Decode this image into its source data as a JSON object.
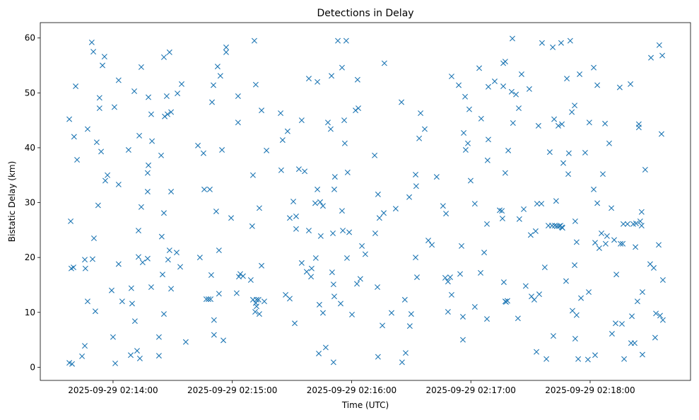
{
  "chart_data": {
    "type": "scatter",
    "title": "Detections in Delay",
    "xlabel": "Time (UTC)",
    "ylabel": "Bistatic Delay (km)",
    "x_origin": "2025-09-29 02:14:00",
    "x_unit": "seconds since x_origin",
    "xlim": [
      -36.6,
      290.5
    ],
    "ylim": [
      -2.4,
      62.8
    ],
    "xticks": [
      {
        "value": 0,
        "label": "2025-09-29 02:14:00"
      },
      {
        "value": 60,
        "label": "2025-09-29 02:15:00"
      },
      {
        "value": 120,
        "label": "2025-09-29 02:16:00"
      },
      {
        "value": 180,
        "label": "2025-09-29 02:17:00"
      },
      {
        "value": 240,
        "label": "2025-09-29 02:18:00"
      }
    ],
    "yticks": [
      {
        "value": 0,
        "label": "0"
      },
      {
        "value": 10,
        "label": "10"
      },
      {
        "value": 20,
        "label": "20"
      },
      {
        "value": 30,
        "label": "30"
      },
      {
        "value": 40,
        "label": "40"
      },
      {
        "value": 50,
        "label": "50"
      },
      {
        "value": 60,
        "label": "60"
      }
    ],
    "grid": false,
    "marker": "x",
    "color": "#1f77b4",
    "points": [
      [
        -22.0,
        45.2
      ],
      [
        -21.3,
        26.6
      ],
      [
        -22.0,
        0.8
      ],
      [
        -20.6,
        0.6
      ],
      [
        -21.0,
        18.0
      ],
      [
        -19.9,
        18.2
      ],
      [
        -19.6,
        42.0
      ],
      [
        -18.8,
        51.2
      ],
      [
        -18.1,
        37.8
      ],
      [
        -15.6,
        2.0
      ],
      [
        -14.2,
        3.9
      ],
      [
        -14.2,
        19.6
      ],
      [
        -13.9,
        18.0
      ],
      [
        -12.8,
        43.4
      ],
      [
        -12.8,
        12.0
      ],
      [
        -10.7,
        59.2
      ],
      [
        -9.9,
        57.5
      ],
      [
        -10.3,
        19.7
      ],
      [
        -9.6,
        23.5
      ],
      [
        -8.9,
        10.2
      ],
      [
        -8.2,
        41.0
      ],
      [
        -7.5,
        29.5
      ],
      [
        -6.8,
        49.1
      ],
      [
        -6.8,
        47.2
      ],
      [
        -6.0,
        39.3
      ],
      [
        -5.3,
        55.0
      ],
      [
        -4.3,
        56.6
      ],
      [
        -3.9,
        34.0
      ],
      [
        -2.8,
        35.0
      ],
      [
        -0.7,
        14.0
      ],
      [
        0.0,
        5.5
      ],
      [
        0.7,
        47.4
      ],
      [
        1.1,
        0.7
      ],
      [
        2.8,
        52.3
      ],
      [
        2.8,
        33.3
      ],
      [
        2.8,
        18.8
      ],
      [
        4.6,
        12.0
      ],
      [
        7.8,
        39.6
      ],
      [
        9.2,
        14.4
      ],
      [
        9.6,
        11.6
      ],
      [
        10.7,
        50.3
      ],
      [
        11.0,
        8.4
      ],
      [
        8.9,
        2.2
      ],
      [
        12.1,
        3.0
      ],
      [
        13.5,
        1.6
      ],
      [
        12.8,
        24.9
      ],
      [
        13.2,
        42.2
      ],
      [
        14.2,
        29.2
      ],
      [
        14.2,
        54.7
      ],
      [
        12.8,
        20.1
      ],
      [
        14.9,
        19.1
      ],
      [
        17.4,
        19.8
      ],
      [
        17.8,
        49.2
      ],
      [
        17.4,
        35.4
      ],
      [
        17.8,
        36.8
      ],
      [
        17.4,
        32.0
      ],
      [
        19.2,
        14.6
      ],
      [
        19.2,
        46.1
      ],
      [
        19.6,
        41.2
      ],
      [
        23.1,
        2.1
      ],
      [
        23.1,
        5.5
      ],
      [
        24.2,
        38.6
      ],
      [
        24.5,
        23.8
      ],
      [
        24.9,
        16.9
      ],
      [
        25.6,
        56.5
      ],
      [
        25.6,
        28.1
      ],
      [
        25.6,
        9.7
      ],
      [
        26.0,
        45.7
      ],
      [
        27.0,
        49.4
      ],
      [
        27.4,
        46.1
      ],
      [
        27.7,
        19.6
      ],
      [
        28.4,
        21.3
      ],
      [
        28.4,
        57.4
      ],
      [
        29.2,
        46.5
      ],
      [
        29.2,
        32.0
      ],
      [
        29.2,
        14.3
      ],
      [
        32.0,
        20.9
      ],
      [
        32.4,
        49.9
      ],
      [
        33.8,
        18.3
      ],
      [
        34.5,
        51.6
      ],
      [
        36.6,
        4.6
      ],
      [
        42.7,
        40.4
      ],
      [
        43.7,
        20.0
      ],
      [
        45.5,
        39.0
      ],
      [
        45.9,
        32.4
      ],
      [
        46.9,
        12.4
      ],
      [
        48.0,
        12.4
      ],
      [
        48.7,
        32.4
      ],
      [
        49.1,
        12.4
      ],
      [
        49.4,
        16.8
      ],
      [
        49.8,
        48.3
      ],
      [
        50.5,
        51.4
      ],
      [
        50.8,
        8.6
      ],
      [
        50.8,
        5.9
      ],
      [
        51.9,
        28.4
      ],
      [
        52.6,
        54.8
      ],
      [
        53.3,
        21.3
      ],
      [
        53.3,
        13.4
      ],
      [
        54.0,
        53.1
      ],
      [
        54.8,
        39.6
      ],
      [
        55.5,
        4.9
      ],
      [
        56.9,
        58.3
      ],
      [
        56.9,
        57.4
      ],
      [
        59.4,
        27.2
      ],
      [
        62.2,
        13.5
      ],
      [
        62.9,
        44.6
      ],
      [
        62.9,
        49.4
      ],
      [
        63.3,
        16.5
      ],
      [
        64.0,
        17.0
      ],
      [
        65.4,
        16.6
      ],
      [
        69.3,
        15.9
      ],
      [
        70.0,
        25.7
      ],
      [
        70.4,
        35.0
      ],
      [
        70.4,
        12.3
      ],
      [
        71.1,
        59.5
      ],
      [
        71.5,
        10.1
      ],
      [
        71.8,
        51.5
      ],
      [
        71.8,
        11.7
      ],
      [
        72.2,
        12.3
      ],
      [
        72.2,
        11.1
      ],
      [
        73.2,
        12.3
      ],
      [
        73.6,
        9.7
      ],
      [
        73.6,
        29.0
      ],
      [
        74.7,
        18.5
      ],
      [
        74.7,
        46.8
      ],
      [
        76.1,
        12.0
      ],
      [
        77.2,
        39.5
      ],
      [
        84.3,
        46.3
      ],
      [
        84.6,
        35.9
      ],
      [
        85.3,
        41.4
      ],
      [
        86.8,
        13.2
      ],
      [
        87.8,
        43.0
      ],
      [
        88.9,
        12.5
      ],
      [
        90.7,
        30.2
      ],
      [
        91.4,
        8.0
      ],
      [
        92.1,
        25.2
      ],
      [
        92.1,
        27.5
      ],
      [
        88.9,
        27.2
      ],
      [
        93.5,
        36.1
      ],
      [
        94.9,
        45.0
      ],
      [
        94.9,
        19.0
      ],
      [
        96.4,
        35.7
      ],
      [
        97.4,
        17.4
      ],
      [
        98.5,
        52.6
      ],
      [
        98.5,
        24.9
      ],
      [
        99.6,
        16.5
      ],
      [
        99.9,
        18.0
      ],
      [
        101.7,
        29.9
      ],
      [
        102.0,
        19.9
      ],
      [
        102.8,
        52.0
      ],
      [
        102.8,
        32.4
      ],
      [
        103.5,
        2.5
      ],
      [
        103.8,
        11.4
      ],
      [
        104.2,
        30.1
      ],
      [
        104.5,
        23.9
      ],
      [
        105.6,
        29.4
      ],
      [
        105.6,
        9.9
      ],
      [
        107.0,
        3.6
      ],
      [
        108.1,
        44.6
      ],
      [
        109.5,
        43.4
      ],
      [
        110.2,
        17.3
      ],
      [
        109.9,
        53.1
      ],
      [
        110.6,
        24.4
      ],
      [
        110.9,
        0.9
      ],
      [
        110.9,
        15.1
      ],
      [
        111.3,
        32.4
      ],
      [
        111.3,
        12.9
      ],
      [
        111.6,
        34.7
      ],
      [
        113.1,
        59.5
      ],
      [
        114.5,
        11.6
      ],
      [
        115.2,
        54.6
      ],
      [
        115.2,
        28.5
      ],
      [
        115.6,
        24.9
      ],
      [
        116.3,
        45.0
      ],
      [
        116.6,
        40.8
      ],
      [
        117.3,
        59.5
      ],
      [
        117.7,
        19.9
      ],
      [
        118.0,
        35.5
      ],
      [
        118.8,
        24.6
      ],
      [
        120.2,
        9.6
      ],
      [
        122.0,
        46.8
      ],
      [
        122.7,
        15.2
      ],
      [
        123.0,
        52.4
      ],
      [
        123.4,
        47.2
      ],
      [
        124.4,
        16.1
      ],
      [
        125.2,
        22.1
      ],
      [
        126.9,
        20.6
      ],
      [
        131.6,
        38.6
      ],
      [
        131.9,
        24.4
      ],
      [
        133.0,
        14.6
      ],
      [
        133.3,
        1.9
      ],
      [
        133.3,
        31.5
      ],
      [
        134.0,
        27.2
      ],
      [
        135.5,
        7.6
      ],
      [
        136.2,
        28.1
      ],
      [
        136.5,
        55.4
      ],
      [
        140.1,
        9.9
      ],
      [
        142.2,
        28.9
      ],
      [
        145.1,
        48.3
      ],
      [
        145.4,
        0.9
      ],
      [
        146.8,
        12.3
      ],
      [
        147.2,
        2.6
      ],
      [
        149.0,
        31.0
      ],
      [
        149.3,
        7.5
      ],
      [
        150.0,
        9.7
      ],
      [
        152.2,
        35.1
      ],
      [
        152.2,
        20.0
      ],
      [
        152.5,
        33.0
      ],
      [
        152.9,
        16.4
      ],
      [
        154.0,
        41.7
      ],
      [
        154.7,
        46.3
      ],
      [
        156.8,
        43.4
      ],
      [
        158.6,
        23.1
      ],
      [
        160.4,
        22.3
      ],
      [
        162.8,
        34.7
      ],
      [
        166.0,
        29.4
      ],
      [
        167.5,
        28.0
      ],
      [
        167.1,
        16.3
      ],
      [
        168.5,
        10.1
      ],
      [
        168.5,
        15.6
      ],
      [
        169.6,
        16.4
      ],
      [
        170.3,
        53.0
      ],
      [
        170.3,
        13.2
      ],
      [
        173.9,
        51.4
      ],
      [
        174.6,
        17.0
      ],
      [
        175.3,
        22.1
      ],
      [
        176.0,
        5.0
      ],
      [
        176.0,
        9.2
      ],
      [
        176.4,
        42.7
      ],
      [
        177.1,
        49.3
      ],
      [
        177.4,
        39.6
      ],
      [
        178.5,
        40.8
      ],
      [
        179.2,
        47.0
      ],
      [
        179.9,
        34.0
      ],
      [
        182.0,
        29.8
      ],
      [
        182.0,
        11.0
      ],
      [
        184.2,
        54.5
      ],
      [
        184.9,
        17.2
      ],
      [
        185.2,
        45.3
      ],
      [
        186.7,
        20.9
      ],
      [
        188.1,
        8.8
      ],
      [
        188.1,
        26.1
      ],
      [
        188.4,
        37.7
      ],
      [
        188.8,
        41.5
      ],
      [
        188.8,
        51.1
      ],
      [
        192.0,
        52.1
      ],
      [
        194.5,
        28.6
      ],
      [
        195.6,
        28.5
      ],
      [
        195.9,
        27.1
      ],
      [
        196.3,
        55.4
      ],
      [
        196.3,
        51.2
      ],
      [
        197.3,
        55.7
      ],
      [
        196.6,
        15.5
      ],
      [
        197.3,
        12.0
      ],
      [
        197.3,
        35.4
      ],
      [
        197.7,
        11.9
      ],
      [
        198.4,
        12.1
      ],
      [
        198.8,
        39.5
      ],
      [
        200.5,
        50.2
      ],
      [
        200.9,
        59.9
      ],
      [
        201.2,
        44.5
      ],
      [
        202.7,
        49.7
      ],
      [
        203.7,
        8.9
      ],
      [
        204.4,
        27.0
      ],
      [
        204.1,
        47.2
      ],
      [
        205.5,
        53.4
      ],
      [
        206.6,
        28.8
      ],
      [
        207.6,
        14.8
      ],
      [
        209.4,
        50.7
      ],
      [
        210.1,
        24.1
      ],
      [
        210.5,
        12.9
      ],
      [
        211.9,
        12.3
      ],
      [
        212.6,
        24.8
      ],
      [
        213.0,
        2.8
      ],
      [
        213.3,
        29.8
      ],
      [
        214.0,
        44.0
      ],
      [
        214.4,
        13.3
      ],
      [
        215.5,
        29.8
      ],
      [
        215.8,
        59.1
      ],
      [
        217.2,
        18.2
      ],
      [
        218.0,
        1.5
      ],
      [
        219.0,
        25.8
      ],
      [
        219.7,
        39.2
      ],
      [
        220.8,
        25.8
      ],
      [
        221.2,
        58.3
      ],
      [
        221.5,
        5.7
      ],
      [
        221.9,
        45.2
      ],
      [
        222.2,
        25.8
      ],
      [
        222.9,
        30.3
      ],
      [
        223.3,
        25.7
      ],
      [
        224.0,
        44.0
      ],
      [
        224.4,
        25.7
      ],
      [
        225.1,
        25.8
      ],
      [
        225.4,
        59.1
      ],
      [
        225.8,
        25.5
      ],
      [
        225.8,
        44.3
      ],
      [
        226.1,
        25.4
      ],
      [
        226.5,
        37.2
      ],
      [
        227.9,
        15.7
      ],
      [
        228.3,
        52.6
      ],
      [
        229.0,
        35.2
      ],
      [
        229.3,
        39.0
      ],
      [
        230.0,
        59.5
      ],
      [
        230.8,
        46.5
      ],
      [
        231.1,
        10.3
      ],
      [
        232.2,
        18.6
      ],
      [
        232.2,
        47.7
      ],
      [
        232.5,
        26.6
      ],
      [
        232.5,
        5.2
      ],
      [
        233.2,
        22.8
      ],
      [
        233.2,
        9.5
      ],
      [
        234.0,
        1.5
      ],
      [
        234.7,
        53.4
      ],
      [
        235.4,
        12.6
      ],
      [
        237.5,
        39.1
      ],
      [
        238.9,
        1.4
      ],
      [
        239.3,
        13.7
      ],
      [
        239.6,
        44.6
      ],
      [
        241.8,
        54.6
      ],
      [
        241.8,
        32.4
      ],
      [
        242.5,
        22.7
      ],
      [
        242.5,
        2.2
      ],
      [
        243.6,
        51.4
      ],
      [
        243.6,
        29.9
      ],
      [
        244.6,
        21.7
      ],
      [
        245.7,
        24.4
      ],
      [
        246.4,
        35.2
      ],
      [
        247.5,
        44.4
      ],
      [
        247.8,
        22.5
      ],
      [
        248.5,
        23.9
      ],
      [
        249.6,
        40.8
      ],
      [
        250.7,
        29.0
      ],
      [
        251.0,
        6.1
      ],
      [
        252.1,
        23.2
      ],
      [
        252.8,
        8.0
      ],
      [
        253.2,
        16.9
      ],
      [
        254.9,
        51.0
      ],
      [
        255.3,
        22.5
      ],
      [
        256.0,
        7.9
      ],
      [
        256.4,
        22.5
      ],
      [
        256.7,
        26.1
      ],
      [
        257.1,
        1.5
      ],
      [
        258.8,
        26.1
      ],
      [
        260.3,
        51.6
      ],
      [
        260.6,
        4.4
      ],
      [
        261.0,
        9.3
      ],
      [
        261.7,
        26.1
      ],
      [
        262.4,
        4.4
      ],
      [
        262.8,
        21.9
      ],
      [
        263.1,
        26.2
      ],
      [
        263.8,
        12.0
      ],
      [
        264.5,
        43.7
      ],
      [
        264.5,
        44.3
      ],
      [
        265.2,
        26.6
      ],
      [
        265.9,
        28.3
      ],
      [
        265.9,
        25.8
      ],
      [
        266.3,
        2.3
      ],
      [
        266.3,
        13.7
      ],
      [
        267.7,
        36.0
      ],
      [
        270.2,
        18.8
      ],
      [
        270.6,
        56.4
      ],
      [
        272.0,
        18.1
      ],
      [
        272.7,
        5.4
      ],
      [
        273.1,
        9.8
      ],
      [
        274.5,
        22.3
      ],
      [
        274.8,
        58.7
      ],
      [
        275.2,
        9.4
      ],
      [
        275.9,
        42.5
      ],
      [
        276.3,
        56.8
      ],
      [
        276.6,
        8.6
      ],
      [
        276.6,
        15.9
      ]
    ]
  }
}
